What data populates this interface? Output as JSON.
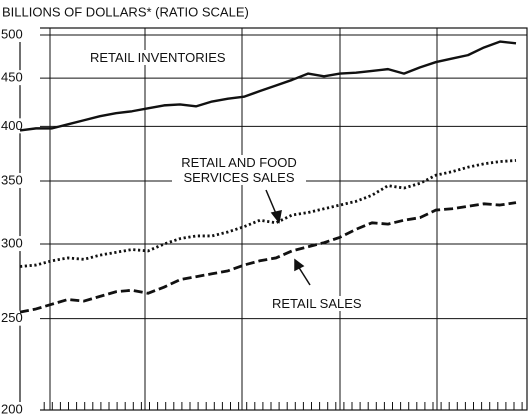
{
  "chart_data": {
    "type": "line",
    "title": "BILLIONS OF DOLLARS* (RATIO SCALE)",
    "log_scale": true,
    "grid": true,
    "categories": [
      null,
      null,
      null,
      null,
      null,
      null,
      null,
      null,
      null,
      null,
      null,
      null,
      null,
      null,
      null,
      null,
      null,
      null,
      null,
      null,
      null,
      null,
      null,
      null,
      null,
      null,
      null,
      null,
      null,
      null,
      null,
      null
    ],
    "series": [
      {
        "name": "RETAIL INVENTORIES",
        "color": "#111111",
        "style": "solid",
        "values": [
          396,
          398,
          398,
          402,
          406,
          410,
          413,
          415,
          418,
          421,
          422,
          420,
          425,
          428,
          430,
          436,
          442,
          448,
          455,
          452,
          455,
          456,
          458,
          460,
          455,
          462,
          468,
          472,
          476,
          485,
          492,
          490
        ]
      },
      {
        "name": "RETAIL AND FOOD SERVICES SALES",
        "color": "#111111",
        "style": "dotted",
        "values": [
          284,
          285,
          288,
          290,
          289,
          292,
          294,
          296,
          295,
          300,
          304,
          306,
          306,
          309,
          313,
          318,
          316,
          322,
          324,
          327,
          330,
          333,
          338,
          346,
          344,
          348,
          355,
          358,
          362,
          365,
          367,
          368
        ]
      },
      {
        "name": "RETAIL SALES",
        "color": "#111111",
        "style": "dashed",
        "values": [
          254,
          256,
          259,
          262,
          261,
          264,
          267,
          268,
          266,
          270,
          275,
          277,
          279,
          281,
          285,
          288,
          290,
          295,
          298,
          301,
          305,
          311,
          316,
          315,
          318,
          320,
          326,
          327,
          329,
          331,
          330,
          332
        ]
      }
    ],
    "ylim": [
      200,
      500
    ],
    "yticks": [
      200,
      250,
      300,
      350,
      400,
      450,
      500
    ]
  }
}
